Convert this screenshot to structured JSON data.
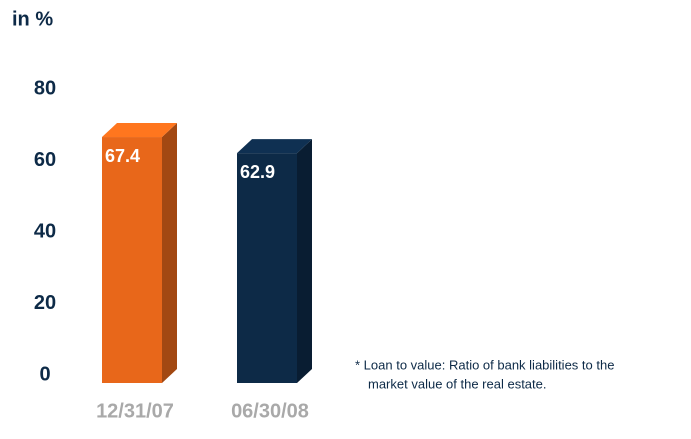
{
  "chart_data": {
    "type": "bar",
    "title": "in %",
    "categories": [
      "12/31/07",
      "06/30/08"
    ],
    "values": [
      67.4,
      62.9
    ],
    "colors": [
      "#e8671a",
      "#0d2a47"
    ],
    "ylim": [
      0,
      80
    ],
    "yticks": [
      0,
      20,
      40,
      60,
      80
    ],
    "grid": false,
    "footnote": [
      "* Loan to value: Ratio of bank liabilities to the",
      "market value of the real estate."
    ]
  }
}
